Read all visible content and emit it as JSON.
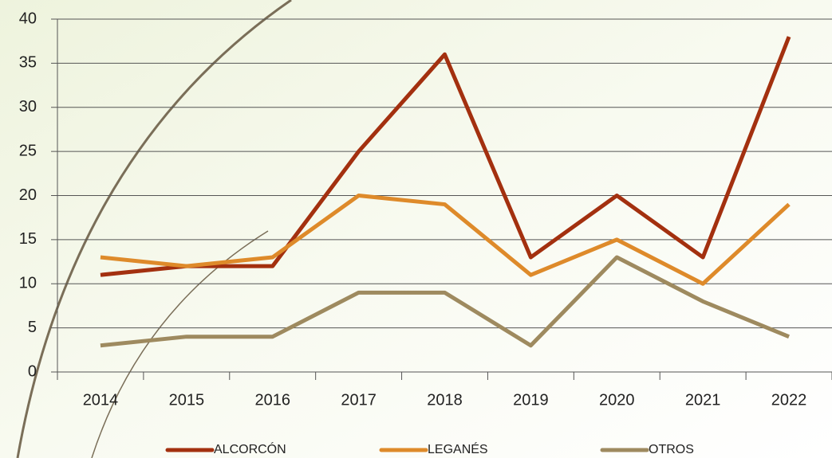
{
  "chart_data": {
    "type": "line",
    "categories": [
      "2014",
      "2015",
      "2016",
      "2017",
      "2018",
      "2019",
      "2020",
      "2021",
      "2022"
    ],
    "series": [
      {
        "name": "ALCORCÓN",
        "color": "#a3300f",
        "values": [
          11,
          12,
          12,
          25,
          36,
          13,
          20,
          13,
          38
        ]
      },
      {
        "name": "LEGANÉS",
        "color": "#de8a2a",
        "values": [
          13,
          12,
          13,
          20,
          19,
          11,
          15,
          10,
          19
        ]
      },
      {
        "name": "OTROS",
        "color": "#9e8a5f",
        "values": [
          3,
          4,
          4,
          9,
          9,
          3,
          13,
          8,
          4
        ]
      }
    ],
    "ylim": [
      0,
      40
    ],
    "yticks": [
      0,
      5,
      10,
      15,
      20,
      25,
      30,
      35,
      40
    ],
    "grid": true
  }
}
